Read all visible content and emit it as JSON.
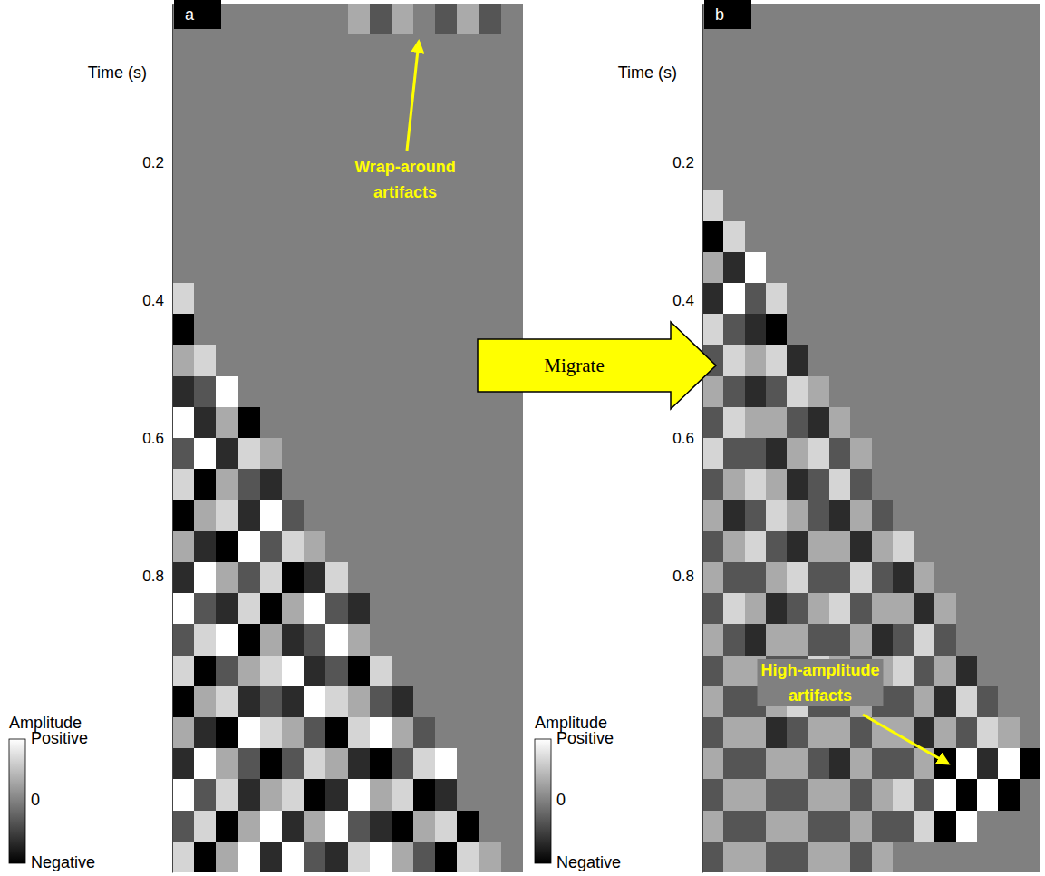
{
  "chart_data": [
    {
      "type": "heatmap",
      "panel_label": "a",
      "y_label": "Time (s)",
      "ylim": [
        -0.03,
        1.23
      ],
      "yticks": [
        0.2,
        0.4,
        0.6,
        0.8
      ],
      "xlim": [
        0,
        16
      ],
      "tick_labels": "y",
      "t_bins": [
        -0.03,
        0.015,
        0.06,
        0.105,
        0.15,
        0.195,
        0.24,
        0.285,
        0.33,
        0.375,
        0.42,
        0.465,
        0.51,
        0.555,
        0.6,
        0.645,
        0.69,
        0.735,
        0.78,
        0.825,
        0.87,
        0.915,
        0.96,
        1.005,
        1.05,
        1.095,
        1.14,
        1.185,
        1.23
      ],
      "trace_bins": [
        0,
        1,
        2,
        3,
        4,
        5,
        6,
        7,
        8,
        9,
        10,
        11,
        12,
        13,
        14,
        15,
        16
      ],
      "cells": [
        [
          0,
          0,
          0,
          0,
          0,
          0,
          0,
          0,
          1,
          -1,
          1,
          0,
          -1,
          1,
          -1,
          0
        ],
        [
          0,
          0,
          0,
          0,
          0,
          0,
          0,
          0,
          0,
          0,
          0,
          0,
          0,
          0,
          0,
          0
        ],
        [
          0,
          0,
          0,
          0,
          0,
          0,
          0,
          0,
          0,
          0,
          0,
          0,
          0,
          0,
          0,
          0
        ],
        [
          0,
          0,
          0,
          0,
          0,
          0,
          0,
          0,
          0,
          0,
          0,
          0,
          0,
          0,
          0,
          0
        ],
        [
          0,
          0,
          0,
          0,
          0,
          0,
          0,
          0,
          0,
          0,
          0,
          0,
          0,
          0,
          0,
          0
        ],
        [
          0,
          0,
          0,
          0,
          0,
          0,
          0,
          0,
          0,
          0,
          0,
          0,
          0,
          0,
          0,
          0
        ],
        [
          0,
          0,
          0,
          0,
          0,
          0,
          0,
          0,
          0,
          0,
          0,
          0,
          0,
          0,
          0,
          0
        ],
        [
          0,
          0,
          0,
          0,
          0,
          0,
          0,
          0,
          0,
          0,
          0,
          0,
          0,
          0,
          0,
          0
        ],
        [
          0,
          0,
          0,
          0,
          0,
          0,
          0,
          0,
          0,
          0,
          0,
          0,
          0,
          0,
          0,
          0
        ],
        [
          2,
          0,
          0,
          0,
          0,
          0,
          0,
          0,
          0,
          0,
          0,
          0,
          0,
          0,
          0,
          0
        ],
        [
          -3,
          0,
          0,
          0,
          0,
          0,
          0,
          0,
          0,
          0,
          0,
          0,
          0,
          0,
          0,
          0
        ],
        [
          1,
          2,
          0,
          0,
          0,
          0,
          0,
          0,
          0,
          0,
          0,
          0,
          0,
          0,
          0,
          0
        ],
        [
          -2,
          -1,
          3,
          0,
          0,
          0,
          0,
          0,
          0,
          0,
          0,
          0,
          0,
          0,
          0,
          0
        ],
        [
          3,
          -2,
          1,
          -3,
          0,
          0,
          0,
          0,
          0,
          0,
          0,
          0,
          0,
          0,
          0,
          0
        ],
        [
          -1,
          3,
          -2,
          2,
          1,
          0,
          0,
          0,
          0,
          0,
          0,
          0,
          0,
          0,
          0,
          0
        ],
        [
          2,
          -3,
          1,
          -1,
          -2,
          0,
          0,
          0,
          0,
          0,
          0,
          0,
          0,
          0,
          0,
          0
        ],
        [
          -3,
          1,
          2,
          -2,
          3,
          -1,
          0,
          0,
          0,
          0,
          0,
          0,
          0,
          0,
          0,
          0
        ],
        [
          1,
          -2,
          -3,
          3,
          -1,
          2,
          1,
          0,
          0,
          0,
          0,
          0,
          0,
          0,
          0,
          0
        ],
        [
          -2,
          3,
          1,
          -1,
          2,
          -3,
          -2,
          2,
          0,
          0,
          0,
          0,
          0,
          0,
          0,
          0
        ],
        [
          3,
          -1,
          -2,
          2,
          -3,
          1,
          3,
          -1,
          -2,
          0,
          0,
          0,
          0,
          0,
          0,
          0
        ],
        [
          -1,
          2,
          3,
          -3,
          1,
          -2,
          -1,
          3,
          1,
          0,
          0,
          0,
          0,
          0,
          0,
          0
        ],
        [
          2,
          -3,
          -1,
          1,
          2,
          3,
          -2,
          -1,
          -3,
          2,
          0,
          0,
          0,
          0,
          0,
          0
        ],
        [
          -3,
          1,
          2,
          -2,
          -1,
          -2,
          3,
          2,
          1,
          -1,
          -2,
          0,
          0,
          0,
          0,
          0
        ],
        [
          1,
          -2,
          -3,
          3,
          2,
          1,
          -1,
          -3,
          2,
          3,
          1,
          -1,
          0,
          0,
          0,
          0
        ],
        [
          -2,
          3,
          1,
          -1,
          -3,
          -1,
          2,
          1,
          -2,
          -3,
          -1,
          2,
          3,
          0,
          0,
          0
        ],
        [
          3,
          -1,
          2,
          -2,
          1,
          2,
          -3,
          -2,
          3,
          1,
          2,
          -3,
          -2,
          0,
          0,
          0
        ],
        [
          -1,
          2,
          -3,
          1,
          3,
          -2,
          1,
          3,
          -1,
          -2,
          -3,
          1,
          2,
          -3,
          0,
          0
        ],
        [
          2,
          -3,
          1,
          3,
          -2,
          3,
          -1,
          -2,
          2,
          3,
          1,
          -1,
          -3,
          2,
          1,
          0
        ]
      ],
      "colorbar": {
        "label": "Amplitude",
        "range": [
          -3,
          3
        ],
        "ticks": [
          {
            "value": 3,
            "label": "Positive"
          },
          0,
          {
            "value": -3,
            "label": "Negative"
          }
        ]
      },
      "annotations": [
        {
          "text": "Wrap-around artifacts"
        }
      ]
    },
    {
      "type": "heatmap",
      "panel_label": "b",
      "y_label": "Time (s)",
      "ylim": [
        -0.03,
        1.23
      ],
      "yticks": [
        0.2,
        0.4,
        0.6,
        0.8
      ],
      "xlim": [
        0,
        16
      ],
      "tick_labels": "y",
      "t_bins": [
        -0.03,
        0.015,
        0.06,
        0.105,
        0.15,
        0.195,
        0.24,
        0.285,
        0.33,
        0.375,
        0.42,
        0.465,
        0.51,
        0.555,
        0.6,
        0.645,
        0.69,
        0.735,
        0.78,
        0.825,
        0.87,
        0.915,
        0.96,
        1.005,
        1.05,
        1.095,
        1.14,
        1.185,
        1.23
      ],
      "trace_bins": [
        0,
        1,
        2,
        3,
        4,
        5,
        6,
        7,
        8,
        9,
        10,
        11,
        12,
        13,
        14,
        15,
        16
      ],
      "cells": [
        [
          0,
          0,
          0,
          0,
          0,
          0,
          0,
          0,
          0,
          0,
          0,
          0,
          0,
          0,
          0,
          0
        ],
        [
          0,
          0,
          0,
          0,
          0,
          0,
          0,
          0,
          0,
          0,
          0,
          0,
          0,
          0,
          0,
          0
        ],
        [
          0,
          0,
          0,
          0,
          0,
          0,
          0,
          0,
          0,
          0,
          0,
          0,
          0,
          0,
          0,
          0
        ],
        [
          0,
          0,
          0,
          0,
          0,
          0,
          0,
          0,
          0,
          0,
          0,
          0,
          0,
          0,
          0,
          0
        ],
        [
          0,
          0,
          0,
          0,
          0,
          0,
          0,
          0,
          0,
          0,
          0,
          0,
          0,
          0,
          0,
          0
        ],
        [
          0,
          0,
          0,
          0,
          0,
          0,
          0,
          0,
          0,
          0,
          0,
          0,
          0,
          0,
          0,
          0
        ],
        [
          2,
          0,
          0,
          0,
          0,
          0,
          0,
          0,
          0,
          0,
          0,
          0,
          0,
          0,
          0,
          0
        ],
        [
          -3,
          2,
          0,
          0,
          0,
          0,
          0,
          0,
          0,
          0,
          0,
          0,
          0,
          0,
          0,
          0
        ],
        [
          1,
          -2,
          3,
          0,
          0,
          0,
          0,
          0,
          0,
          0,
          0,
          0,
          0,
          0,
          0,
          0
        ],
        [
          -2,
          3,
          -1,
          2,
          0,
          0,
          0,
          0,
          0,
          0,
          0,
          0,
          0,
          0,
          0,
          0
        ],
        [
          2,
          -1,
          -2,
          -3,
          0,
          0,
          0,
          0,
          0,
          0,
          0,
          0,
          0,
          0,
          0,
          0
        ],
        [
          -1,
          2,
          1,
          2,
          -2,
          0,
          0,
          0,
          0,
          0,
          0,
          0,
          0,
          0,
          0,
          0
        ],
        [
          1,
          -1,
          -2,
          -1,
          2,
          1,
          0,
          0,
          0,
          0,
          0,
          0,
          0,
          0,
          0,
          0
        ],
        [
          -1,
          2,
          1,
          1,
          -1,
          -2,
          1,
          0,
          0,
          0,
          0,
          0,
          0,
          0,
          0,
          0
        ],
        [
          2,
          -1,
          -1,
          -2,
          1,
          2,
          -1,
          1,
          0,
          0,
          0,
          0,
          0,
          0,
          0,
          0
        ],
        [
          -1,
          1,
          2,
          1,
          -2,
          -1,
          2,
          -1,
          0,
          0,
          0,
          0,
          0,
          0,
          0,
          0
        ],
        [
          1,
          -2,
          -1,
          2,
          1,
          -1,
          -2,
          1,
          -1,
          0,
          0,
          0,
          0,
          0,
          0,
          0
        ],
        [
          -1,
          1,
          2,
          -1,
          -2,
          1,
          1,
          -2,
          1,
          2,
          0,
          0,
          0,
          0,
          0,
          0
        ],
        [
          1,
          -1,
          -1,
          1,
          2,
          -1,
          -1,
          2,
          -1,
          -2,
          1,
          0,
          0,
          0,
          0,
          0
        ],
        [
          -1,
          2,
          1,
          -2,
          -1,
          1,
          2,
          -1,
          1,
          1,
          -2,
          1,
          0,
          0,
          0,
          0
        ],
        [
          1,
          -1,
          -2,
          1,
          1,
          -1,
          -1,
          1,
          -2,
          -1,
          2,
          -1,
          0,
          0,
          0,
          0
        ],
        [
          -1,
          1,
          1,
          -1,
          -1,
          2,
          1,
          -1,
          1,
          2,
          -1,
          1,
          -2,
          0,
          0,
          0
        ],
        [
          1,
          -1,
          -1,
          1,
          2,
          -1,
          -1,
          1,
          -1,
          -1,
          1,
          -2,
          2,
          -1,
          0,
          0
        ],
        [
          -1,
          1,
          1,
          -2,
          -1,
          1,
          1,
          -1,
          1,
          1,
          -2,
          1,
          -1,
          2,
          1,
          0
        ],
        [
          1,
          -1,
          -1,
          1,
          1,
          -1,
          -2,
          1,
          -1,
          -1,
          1,
          -3,
          3,
          -2,
          3,
          -3
        ],
        [
          -1,
          1,
          1,
          -1,
          -1,
          1,
          1,
          -1,
          1,
          2,
          -1,
          3,
          -3,
          3,
          -3,
          0
        ],
        [
          1,
          -1,
          -1,
          1,
          1,
          -1,
          -1,
          1,
          -1,
          -1,
          2,
          -3,
          3,
          0,
          0,
          0
        ],
        [
          -1,
          1,
          1,
          -1,
          -1,
          1,
          1,
          -1,
          1,
          0,
          0,
          0,
          0,
          0,
          0,
          0
        ]
      ],
      "colorbar": {
        "label": "Amplitude",
        "range": [
          -3,
          3
        ],
        "ticks": [
          {
            "value": 3,
            "label": "Positive"
          },
          0,
          {
            "value": -3,
            "label": "Negative"
          }
        ]
      },
      "annotations": [
        {
          "text": "High-amplitude artifacts"
        }
      ]
    }
  ],
  "annotations": [
    {
      "text": "Migrate"
    }
  ]
}
